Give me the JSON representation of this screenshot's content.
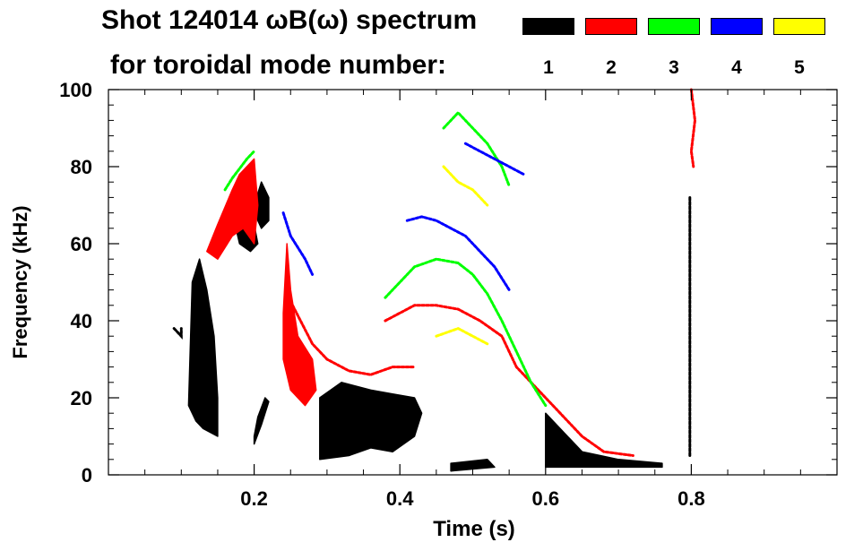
{
  "chart_data": {
    "type": "spectrogram",
    "title_line1": "Shot 124014 ωB(ω) spectrum",
    "title_line2": "for toroidal mode number:",
    "xlabel": "Time (s)",
    "ylabel": "Frequency (kHz)",
    "xlim": [
      0.0,
      1.0
    ],
    "ylim": [
      0,
      100
    ],
    "x_ticks": [
      {
        "value": 0.2,
        "label": "0.2"
      },
      {
        "value": 0.4,
        "label": "0.4"
      },
      {
        "value": 0.6,
        "label": "0.6"
      },
      {
        "value": 0.8,
        "label": "0.8"
      }
    ],
    "y_ticks": [
      {
        "value": 0,
        "label": "0"
      },
      {
        "value": 20,
        "label": "20"
      },
      {
        "value": 40,
        "label": "40"
      },
      {
        "value": 60,
        "label": "60"
      },
      {
        "value": 80,
        "label": "80"
      },
      {
        "value": 100,
        "label": "100"
      }
    ],
    "legend": [
      {
        "mode": "1",
        "color": "#000000"
      },
      {
        "mode": "2",
        "color": "#ff0000"
      },
      {
        "mode": "3",
        "color": "#00ff00"
      },
      {
        "mode": "4",
        "color": "#0000ff"
      },
      {
        "mode": "5",
        "color": "#ffff00"
      }
    ],
    "series": [
      {
        "name": "n=1 early burst",
        "mode": "1",
        "color": "#000000",
        "kind": "fill",
        "points": [
          [
            0.09,
            38
          ],
          [
            0.1,
            36
          ],
          [
            0.1,
            38
          ]
        ],
        "polygon": [
          [
            0.11,
            18
          ],
          [
            0.115,
            50
          ],
          [
            0.125,
            56
          ],
          [
            0.135,
            48
          ],
          [
            0.145,
            36
          ],
          [
            0.15,
            20
          ],
          [
            0.15,
            10
          ],
          [
            0.13,
            12
          ],
          [
            0.12,
            14
          ]
        ]
      },
      {
        "name": "n=1 blob 0.18s",
        "mode": "1",
        "color": "#000000",
        "kind": "fill",
        "polygon": [
          [
            0.175,
            64
          ],
          [
            0.19,
            68
          ],
          [
            0.2,
            65
          ],
          [
            0.205,
            60
          ],
          [
            0.195,
            58
          ],
          [
            0.18,
            60
          ]
        ]
      },
      {
        "name": "n=1 blob 0.2s",
        "mode": "1",
        "color": "#000000",
        "kind": "fill",
        "polygon": [
          [
            0.2,
            70
          ],
          [
            0.21,
            76
          ],
          [
            0.22,
            72
          ],
          [
            0.22,
            66
          ],
          [
            0.21,
            64
          ],
          [
            0.205,
            66
          ]
        ]
      },
      {
        "name": "n=1 low 0.2s",
        "mode": "1",
        "color": "#000000",
        "kind": "fill",
        "polygon": [
          [
            0.2,
            10
          ],
          [
            0.205,
            15
          ],
          [
            0.215,
            20
          ],
          [
            0.22,
            19
          ],
          [
            0.21,
            13
          ],
          [
            0.2,
            8
          ]
        ]
      },
      {
        "name": "n=1 low-frequency region",
        "mode": "1",
        "color": "#000000",
        "kind": "fill",
        "polygon": [
          [
            0.29,
            4
          ],
          [
            0.29,
            20
          ],
          [
            0.32,
            24
          ],
          [
            0.36,
            22
          ],
          [
            0.39,
            21
          ],
          [
            0.42,
            20
          ],
          [
            0.43,
            16
          ],
          [
            0.42,
            10
          ],
          [
            0.39,
            6
          ],
          [
            0.36,
            7
          ],
          [
            0.33,
            5
          ]
        ]
      },
      {
        "name": "n=1 late decay",
        "mode": "1",
        "color": "#000000",
        "kind": "fill",
        "polygon": [
          [
            0.6,
            2
          ],
          [
            0.6,
            16
          ],
          [
            0.61,
            14
          ],
          [
            0.63,
            10
          ],
          [
            0.65,
            6
          ],
          [
            0.7,
            4
          ],
          [
            0.76,
            3
          ],
          [
            0.76,
            2
          ]
        ]
      },
      {
        "name": "n=1 baseline specks",
        "mode": "1",
        "color": "#000000",
        "kind": "fill",
        "polygon": [
          [
            0.47,
            1
          ],
          [
            0.47,
            3
          ],
          [
            0.52,
            4
          ],
          [
            0.53,
            2
          ]
        ]
      },
      {
        "name": "n=1 vertical 0.8s",
        "mode": "1",
        "color": "#000000",
        "kind": "line",
        "points": [
          [
            0.798,
            5
          ],
          [
            0.798,
            72
          ]
        ]
      },
      {
        "name": "n=2 early",
        "mode": "2",
        "color": "#ff0000",
        "kind": "fill",
        "polygon": [
          [
            0.135,
            58
          ],
          [
            0.15,
            65
          ],
          [
            0.17,
            74
          ],
          [
            0.18,
            78
          ],
          [
            0.2,
            82
          ],
          [
            0.205,
            70
          ],
          [
            0.2,
            60
          ],
          [
            0.185,
            64
          ],
          [
            0.17,
            62
          ],
          [
            0.15,
            56
          ]
        ]
      },
      {
        "name": "n=2 0.25s burst",
        "mode": "2",
        "color": "#ff0000",
        "kind": "fill",
        "polygon": [
          [
            0.24,
            42
          ],
          [
            0.245,
            60
          ],
          [
            0.25,
            48
          ],
          [
            0.26,
            36
          ],
          [
            0.28,
            30
          ],
          [
            0.285,
            22
          ],
          [
            0.27,
            18
          ],
          [
            0.25,
            22
          ],
          [
            0.24,
            30
          ]
        ]
      },
      {
        "name": "n=2 chirp low",
        "mode": "2",
        "color": "#ff0000",
        "kind": "line",
        "points": [
          [
            0.25,
            45
          ],
          [
            0.28,
            34
          ],
          [
            0.3,
            30
          ],
          [
            0.33,
            27
          ],
          [
            0.36,
            26
          ],
          [
            0.39,
            28
          ],
          [
            0.42,
            28
          ]
        ]
      },
      {
        "name": "n=2 chirp upper",
        "mode": "2",
        "color": "#ff0000",
        "kind": "line",
        "points": [
          [
            0.38,
            40
          ],
          [
            0.4,
            42
          ],
          [
            0.42,
            44
          ],
          [
            0.45,
            44
          ],
          [
            0.48,
            43
          ],
          [
            0.51,
            40
          ],
          [
            0.54,
            36
          ],
          [
            0.56,
            28
          ],
          [
            0.59,
            22
          ],
          [
            0.62,
            16
          ],
          [
            0.65,
            10
          ],
          [
            0.68,
            6
          ],
          [
            0.72,
            5
          ]
        ]
      },
      {
        "name": "n=2 late streak",
        "mode": "2",
        "color": "#ff0000",
        "kind": "line",
        "points": [
          [
            0.8,
            100
          ],
          [
            0.805,
            92
          ],
          [
            0.8,
            84
          ],
          [
            0.803,
            80
          ]
        ]
      },
      {
        "name": "n=3 early",
        "mode": "3",
        "color": "#00ff00",
        "kind": "line",
        "points": [
          [
            0.16,
            74
          ],
          [
            0.17,
            77
          ],
          [
            0.19,
            82
          ],
          [
            0.2,
            84
          ]
        ]
      },
      {
        "name": "n=3 arc",
        "mode": "3",
        "color": "#00ff00",
        "kind": "line",
        "points": [
          [
            0.38,
            46
          ],
          [
            0.4,
            50
          ],
          [
            0.42,
            54
          ],
          [
            0.45,
            56
          ],
          [
            0.48,
            55
          ],
          [
            0.5,
            52
          ],
          [
            0.52,
            47
          ],
          [
            0.54,
            40
          ],
          [
            0.56,
            32
          ],
          [
            0.58,
            24
          ],
          [
            0.6,
            18
          ]
        ]
      },
      {
        "name": "n=3 upper",
        "mode": "3",
        "color": "#00ff00",
        "kind": "line",
        "points": [
          [
            0.46,
            90
          ],
          [
            0.48,
            94
          ],
          [
            0.5,
            90
          ],
          [
            0.52,
            86
          ],
          [
            0.54,
            80
          ],
          [
            0.55,
            75
          ]
        ]
      },
      {
        "name": "n=4 arc",
        "mode": "4",
        "color": "#0000ff",
        "kind": "line",
        "points": [
          [
            0.41,
            66
          ],
          [
            0.43,
            67
          ],
          [
            0.45,
            66
          ],
          [
            0.47,
            64
          ],
          [
            0.49,
            62
          ],
          [
            0.51,
            58
          ],
          [
            0.53,
            54
          ],
          [
            0.55,
            48
          ]
        ]
      },
      {
        "name": "n=4 upper",
        "mode": "4",
        "color": "#0000ff",
        "kind": "line",
        "points": [
          [
            0.49,
            86
          ],
          [
            0.51,
            84
          ],
          [
            0.53,
            82
          ],
          [
            0.55,
            80
          ],
          [
            0.57,
            78
          ]
        ]
      },
      {
        "name": "n=4 early",
        "mode": "4",
        "color": "#0000ff",
        "kind": "line",
        "points": [
          [
            0.24,
            68
          ],
          [
            0.25,
            62
          ],
          [
            0.27,
            56
          ],
          [
            0.28,
            52
          ]
        ]
      },
      {
        "name": "n=5 upper",
        "mode": "5",
        "color": "#ffff00",
        "kind": "line",
        "points": [
          [
            0.46,
            80
          ],
          [
            0.48,
            76
          ],
          [
            0.5,
            74
          ],
          [
            0.52,
            70
          ]
        ]
      },
      {
        "name": "n=5 low",
        "mode": "5",
        "color": "#ffff00",
        "kind": "line",
        "points": [
          [
            0.45,
            36
          ],
          [
            0.48,
            38
          ],
          [
            0.5,
            36
          ],
          [
            0.52,
            34
          ]
        ]
      }
    ]
  }
}
